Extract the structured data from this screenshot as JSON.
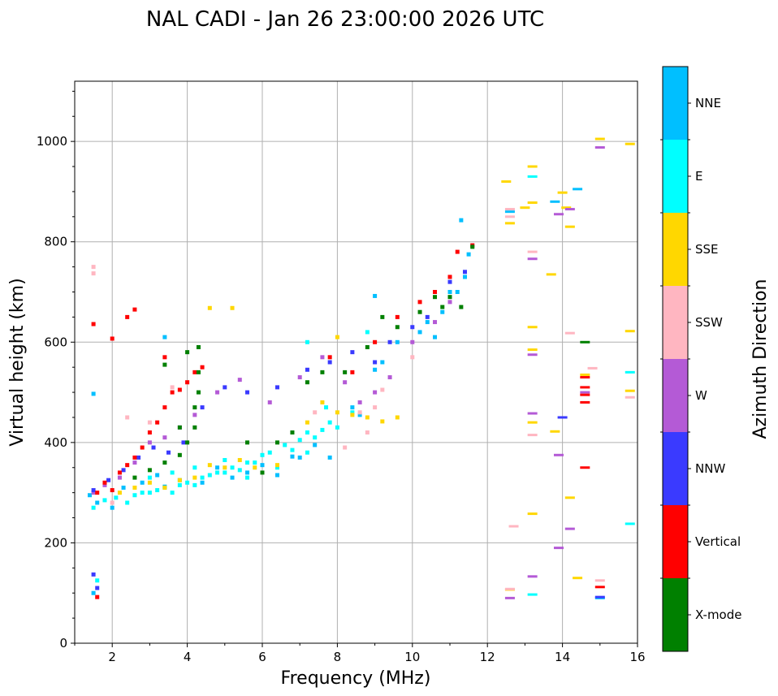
{
  "chart_data": {
    "type": "scatter",
    "title": "NAL CADI - Jan 26 23:00:00 2026 UTC",
    "xlabel": "Frequency (MHz)",
    "ylabel": "Virtual height (km)",
    "xlim": [
      1,
      16
    ],
    "ylim": [
      0,
      1120
    ],
    "xticks": [
      2,
      4,
      6,
      8,
      10,
      12,
      14,
      16
    ],
    "yticks": [
      0,
      200,
      400,
      600,
      800,
      1000
    ],
    "grid": true,
    "colorbar": {
      "label": "Azimuth Direction",
      "categories": [
        {
          "name": "X-mode",
          "color": "#008000"
        },
        {
          "name": "Vertical",
          "color": "#ff0000"
        },
        {
          "name": "NNW",
          "color": "#3a3aff"
        },
        {
          "name": "W",
          "color": "#b45ad6"
        },
        {
          "name": "SSW",
          "color": "#ffb6c1"
        },
        {
          "name": "SSE",
          "color": "#ffd700"
        },
        {
          "name": "E",
          "color": "#00ffff"
        },
        {
          "name": "NNE",
          "color": "#00bfff"
        }
      ]
    },
    "series": [
      {
        "name": "E",
        "points": [
          [
            1.5,
            270
          ],
          [
            1.8,
            285
          ],
          [
            2.1,
            290
          ],
          [
            2.4,
            280
          ],
          [
            2.6,
            295
          ],
          [
            2.8,
            300
          ],
          [
            3.0,
            300
          ],
          [
            3.2,
            305
          ],
          [
            3.4,
            310
          ],
          [
            3.6,
            300
          ],
          [
            3.8,
            315
          ],
          [
            4.0,
            320
          ],
          [
            4.2,
            315
          ],
          [
            4.4,
            330
          ],
          [
            4.6,
            335
          ],
          [
            4.8,
            340
          ],
          [
            5.0,
            340
          ],
          [
            5.2,
            350
          ],
          [
            5.4,
            345
          ],
          [
            5.6,
            360
          ],
          [
            5.8,
            360
          ],
          [
            6.0,
            375
          ],
          [
            6.2,
            380
          ],
          [
            6.6,
            395
          ],
          [
            6.8,
            385
          ],
          [
            7.0,
            405
          ],
          [
            7.2,
            420
          ],
          [
            7.4,
            410
          ],
          [
            7.6,
            425
          ],
          [
            7.8,
            440
          ],
          [
            8.0,
            430
          ],
          [
            8.4,
            460
          ],
          [
            3.0,
            330
          ],
          [
            3.6,
            340
          ],
          [
            4.2,
            350
          ],
          [
            5.0,
            365
          ],
          [
            5.6,
            330
          ],
          [
            6.4,
            350
          ],
          [
            7.2,
            380
          ],
          [
            7.7,
            470
          ],
          [
            1.6,
            125
          ],
          [
            13.2,
            97
          ],
          [
            15.8,
            238
          ],
          [
            15.8,
            540
          ],
          [
            13.2,
            930
          ],
          [
            7.2,
            600
          ],
          [
            8.8,
            620
          ]
        ]
      },
      {
        "name": "NNE",
        "points": [
          [
            1.4,
            295
          ],
          [
            1.6,
            280
          ],
          [
            2.0,
            270
          ],
          [
            2.3,
            310
          ],
          [
            2.8,
            320
          ],
          [
            3.2,
            335
          ],
          [
            3.4,
            312
          ],
          [
            3.8,
            325
          ],
          [
            4.4,
            320
          ],
          [
            4.8,
            350
          ],
          [
            5.2,
            330
          ],
          [
            5.6,
            340
          ],
          [
            6.0,
            355
          ],
          [
            6.4,
            335
          ],
          [
            6.8,
            372
          ],
          [
            7.0,
            370
          ],
          [
            7.4,
            395
          ],
          [
            7.8,
            370
          ],
          [
            8.4,
            470
          ],
          [
            8.6,
            455
          ],
          [
            9.0,
            545
          ],
          [
            9.2,
            560
          ],
          [
            9.6,
            600
          ],
          [
            10.2,
            620
          ],
          [
            10.4,
            640
          ],
          [
            10.6,
            610
          ],
          [
            10.8,
            660
          ],
          [
            11.0,
            700
          ],
          [
            11.2,
            700
          ],
          [
            11.4,
            730
          ],
          [
            11.5,
            775
          ],
          [
            11.3,
            843
          ],
          [
            9.0,
            692
          ],
          [
            3.4,
            610
          ],
          [
            1.5,
            497
          ],
          [
            1.5,
            100
          ],
          [
            15.0,
            90
          ],
          [
            13.8,
            880
          ],
          [
            14.4,
            905
          ],
          [
            12.6,
            860
          ]
        ]
      },
      {
        "name": "SSE",
        "points": [
          [
            2.2,
            300
          ],
          [
            2.6,
            310
          ],
          [
            3.0,
            320
          ],
          [
            3.4,
            310
          ],
          [
            3.8,
            325
          ],
          [
            4.2,
            330
          ],
          [
            4.6,
            355
          ],
          [
            5.0,
            350
          ],
          [
            5.4,
            365
          ],
          [
            5.8,
            350
          ],
          [
            6.4,
            355
          ],
          [
            7.2,
            440
          ],
          [
            7.6,
            480
          ],
          [
            8.0,
            460
          ],
          [
            8.4,
            455
          ],
          [
            8.8,
            450
          ],
          [
            9.2,
            442
          ],
          [
            9.6,
            450
          ],
          [
            4.6,
            668
          ],
          [
            5.2,
            668
          ],
          [
            8.0,
            610
          ],
          [
            12.6,
            837
          ],
          [
            13.0,
            868
          ],
          [
            13.2,
            950
          ],
          [
            13.2,
            878
          ],
          [
            13.2,
            630
          ],
          [
            13.2,
            585
          ],
          [
            13.2,
            440
          ],
          [
            13.2,
            258
          ],
          [
            14.1,
            868
          ],
          [
            14.2,
            830
          ],
          [
            14.0,
            898
          ],
          [
            14.2,
            290
          ],
          [
            14.4,
            130
          ],
          [
            13.7,
            735
          ],
          [
            13.8,
            422
          ],
          [
            15.0,
            1005
          ],
          [
            15.8,
            995
          ],
          [
            15.8,
            622
          ],
          [
            15.8,
            503
          ],
          [
            12.5,
            920
          ],
          [
            14.6,
            535
          ],
          [
            12.6,
            107
          ]
        ]
      },
      {
        "name": "SSW",
        "points": [
          [
            1.5,
            750
          ],
          [
            1.5,
            737
          ],
          [
            2.0,
            280
          ],
          [
            2.4,
            450
          ],
          [
            3.0,
            440
          ],
          [
            3.6,
            510
          ],
          [
            4.0,
            520
          ],
          [
            8.2,
            390
          ],
          [
            8.6,
            460
          ],
          [
            8.8,
            420
          ],
          [
            9.2,
            505
          ],
          [
            10.0,
            570
          ],
          [
            12.6,
            850
          ],
          [
            12.6,
            865
          ],
          [
            13.2,
            780
          ],
          [
            13.2,
            415
          ],
          [
            14.2,
            618
          ],
          [
            14.8,
            548
          ],
          [
            15.0,
            125
          ],
          [
            12.7,
            233
          ],
          [
            12.6,
            108
          ],
          [
            15.8,
            490
          ],
          [
            9.0,
            470
          ],
          [
            7.4,
            460
          ]
        ]
      },
      {
        "name": "W",
        "points": [
          [
            1.5,
            300
          ],
          [
            1.8,
            315
          ],
          [
            2.2,
            330
          ],
          [
            2.6,
            360
          ],
          [
            3.0,
            400
          ],
          [
            3.4,
            410
          ],
          [
            3.8,
            430
          ],
          [
            4.2,
            455
          ],
          [
            4.8,
            500
          ],
          [
            5.4,
            525
          ],
          [
            6.2,
            480
          ],
          [
            7.0,
            530
          ],
          [
            7.6,
            570
          ],
          [
            8.2,
            520
          ],
          [
            8.6,
            480
          ],
          [
            9.0,
            500
          ],
          [
            9.4,
            530
          ],
          [
            10.0,
            600
          ],
          [
            10.6,
            640
          ],
          [
            11.0,
            680
          ],
          [
            13.2,
            766
          ],
          [
            13.2,
            575
          ],
          [
            13.2,
            458
          ],
          [
            13.2,
            133
          ],
          [
            13.9,
            855
          ],
          [
            13.9,
            375
          ],
          [
            13.9,
            190
          ],
          [
            14.2,
            228
          ],
          [
            14.2,
            865
          ],
          [
            15.0,
            988
          ],
          [
            12.6,
            90
          ],
          [
            14.6,
            500
          ]
        ]
      },
      {
        "name": "NNW",
        "points": [
          [
            1.5,
            305
          ],
          [
            1.9,
            325
          ],
          [
            2.3,
            345
          ],
          [
            2.7,
            370
          ],
          [
            3.1,
            390
          ],
          [
            3.5,
            380
          ],
          [
            3.9,
            400
          ],
          [
            4.4,
            470
          ],
          [
            5.0,
            510
          ],
          [
            5.6,
            500
          ],
          [
            6.4,
            510
          ],
          [
            7.2,
            545
          ],
          [
            7.8,
            560
          ],
          [
            8.4,
            580
          ],
          [
            9.0,
            560
          ],
          [
            9.4,
            600
          ],
          [
            10.0,
            630
          ],
          [
            10.4,
            650
          ],
          [
            11.0,
            720
          ],
          [
            11.4,
            740
          ],
          [
            1.5,
            137
          ],
          [
            1.6,
            110
          ],
          [
            14.0,
            450
          ],
          [
            15.0,
            92
          ]
        ]
      },
      {
        "name": "Vertical",
        "points": [
          [
            1.5,
            636
          ],
          [
            1.6,
            300
          ],
          [
            1.8,
            320
          ],
          [
            2.0,
            305
          ],
          [
            2.2,
            340
          ],
          [
            2.4,
            355
          ],
          [
            2.6,
            370
          ],
          [
            2.8,
            390
          ],
          [
            3.0,
            420
          ],
          [
            3.2,
            440
          ],
          [
            3.4,
            470
          ],
          [
            3.6,
            500
          ],
          [
            3.8,
            505
          ],
          [
            4.0,
            520
          ],
          [
            4.2,
            540
          ],
          [
            4.4,
            550
          ],
          [
            2.0,
            607
          ],
          [
            2.4,
            650
          ],
          [
            2.6,
            665
          ],
          [
            7.8,
            570
          ],
          [
            8.4,
            540
          ],
          [
            9.0,
            600
          ],
          [
            9.6,
            650
          ],
          [
            10.2,
            680
          ],
          [
            10.6,
            700
          ],
          [
            11.0,
            730
          ],
          [
            11.2,
            780
          ],
          [
            11.6,
            793
          ],
          [
            14.6,
            530
          ],
          [
            14.6,
            510
          ],
          [
            14.6,
            495
          ],
          [
            14.6,
            480
          ],
          [
            14.6,
            350
          ],
          [
            15.0,
            112
          ],
          [
            1.6,
            92
          ],
          [
            3.4,
            570
          ]
        ]
      },
      {
        "name": "X-mode",
        "points": [
          [
            2.6,
            330
          ],
          [
            3.0,
            345
          ],
          [
            3.4,
            360
          ],
          [
            3.8,
            375
          ],
          [
            4.0,
            400
          ],
          [
            4.2,
            430
          ],
          [
            4.2,
            470
          ],
          [
            4.3,
            500
          ],
          [
            4.3,
            540
          ],
          [
            4.3,
            590
          ],
          [
            4.0,
            580
          ],
          [
            3.4,
            555
          ],
          [
            3.8,
            430
          ],
          [
            5.6,
            400
          ],
          [
            6.0,
            340
          ],
          [
            6.4,
            400
          ],
          [
            6.8,
            420
          ],
          [
            7.2,
            520
          ],
          [
            7.6,
            540
          ],
          [
            8.2,
            540
          ],
          [
            8.8,
            590
          ],
          [
            9.2,
            650
          ],
          [
            9.6,
            630
          ],
          [
            10.2,
            660
          ],
          [
            10.6,
            690
          ],
          [
            10.8,
            670
          ],
          [
            11.0,
            690
          ],
          [
            11.3,
            670
          ],
          [
            11.6,
            790
          ],
          [
            14.6,
            600
          ]
        ]
      }
    ]
  }
}
